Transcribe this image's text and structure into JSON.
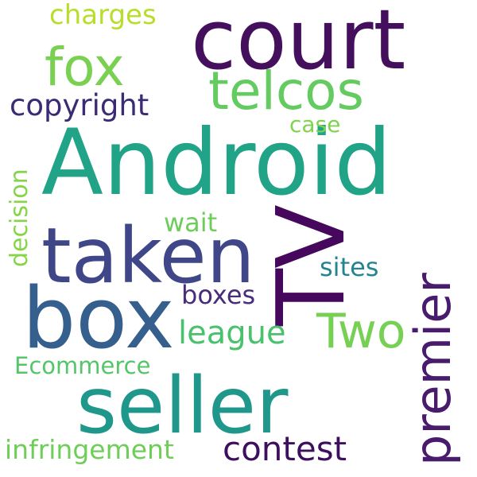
{
  "word_cloud": {
    "words": [
      {
        "text": "Android",
        "color": "#20a386"
      },
      {
        "text": "court",
        "color": "#440f5c"
      },
      {
        "text": "TV",
        "color": "#46085c"
      },
      {
        "text": "taken",
        "color": "#3f4788"
      },
      {
        "text": "box",
        "color": "#355f8d"
      },
      {
        "text": "seller",
        "color": "#1f978b"
      },
      {
        "text": "premier",
        "color": "#481b6d"
      },
      {
        "text": "Two",
        "color": "#75d054"
      },
      {
        "text": "telcos",
        "color": "#63cb5f"
      },
      {
        "text": "fox",
        "color": "#7ad151"
      },
      {
        "text": "contest",
        "color": "#3e0f5f"
      },
      {
        "text": "copyright",
        "color": "#3b2a74"
      },
      {
        "text": "league",
        "color": "#4ac16d"
      },
      {
        "text": "charges",
        "color": "#b8de29"
      },
      {
        "text": "case",
        "color": "#7fd34e"
      },
      {
        "text": "sites",
        "color": "#25858e"
      },
      {
        "text": "boxes",
        "color": "#472d7b"
      },
      {
        "text": "wait",
        "color": "#6ccd5a"
      },
      {
        "text": "decision",
        "color": "#86d549"
      },
      {
        "text": "Ecommerce",
        "color": "#54c568"
      },
      {
        "text": "infringement",
        "color": "#6ece58"
      }
    ]
  }
}
